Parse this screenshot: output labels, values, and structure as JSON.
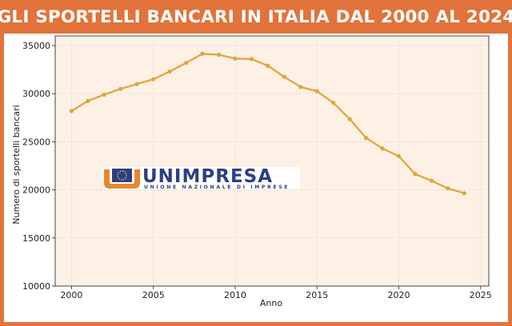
{
  "chart_data": {
    "type": "line",
    "title": "GLI SPORTELLI BANCARI IN ITALIA DAL 2000 AL 2024",
    "xlabel": "Anno",
    "ylabel": "Numero di sportelli bancari",
    "xlim": [
      1999,
      2025.5
    ],
    "ylim": [
      10000,
      36000
    ],
    "xticks": [
      2000,
      2005,
      2010,
      2015,
      2020,
      2025
    ],
    "yticks": [
      10000,
      15000,
      20000,
      25000,
      30000,
      35000
    ],
    "grid": true,
    "x": [
      2000,
      2001,
      2002,
      2003,
      2004,
      2005,
      2006,
      2007,
      2008,
      2009,
      2010,
      2011,
      2012,
      2013,
      2014,
      2015,
      2016,
      2017,
      2018,
      2019,
      2020,
      2021,
      2022,
      2023,
      2024
    ],
    "series": [
      {
        "values": [
          28200,
          29250,
          29900,
          30500,
          31000,
          31500,
          32300,
          33200,
          34150,
          34050,
          33650,
          33600,
          32900,
          31750,
          30700,
          30250,
          29050,
          27350,
          25400,
          24300,
          23500,
          21650,
          20950,
          20150,
          19650
        ],
        "color": "#e0a43a"
      }
    ]
  },
  "colors": {
    "frame": "#e2733a",
    "plot_background": "#fcf1e4",
    "grid": "#e5dccd",
    "line": "#e0a43a",
    "logo_orange": "#e8862e",
    "logo_blue": "#2d3f82"
  },
  "logo": {
    "name": "UNIMPRESA",
    "subtitle": "UNIONE NAZIONALE DI IMPRESE",
    "icon": "eu-stars-icon"
  }
}
